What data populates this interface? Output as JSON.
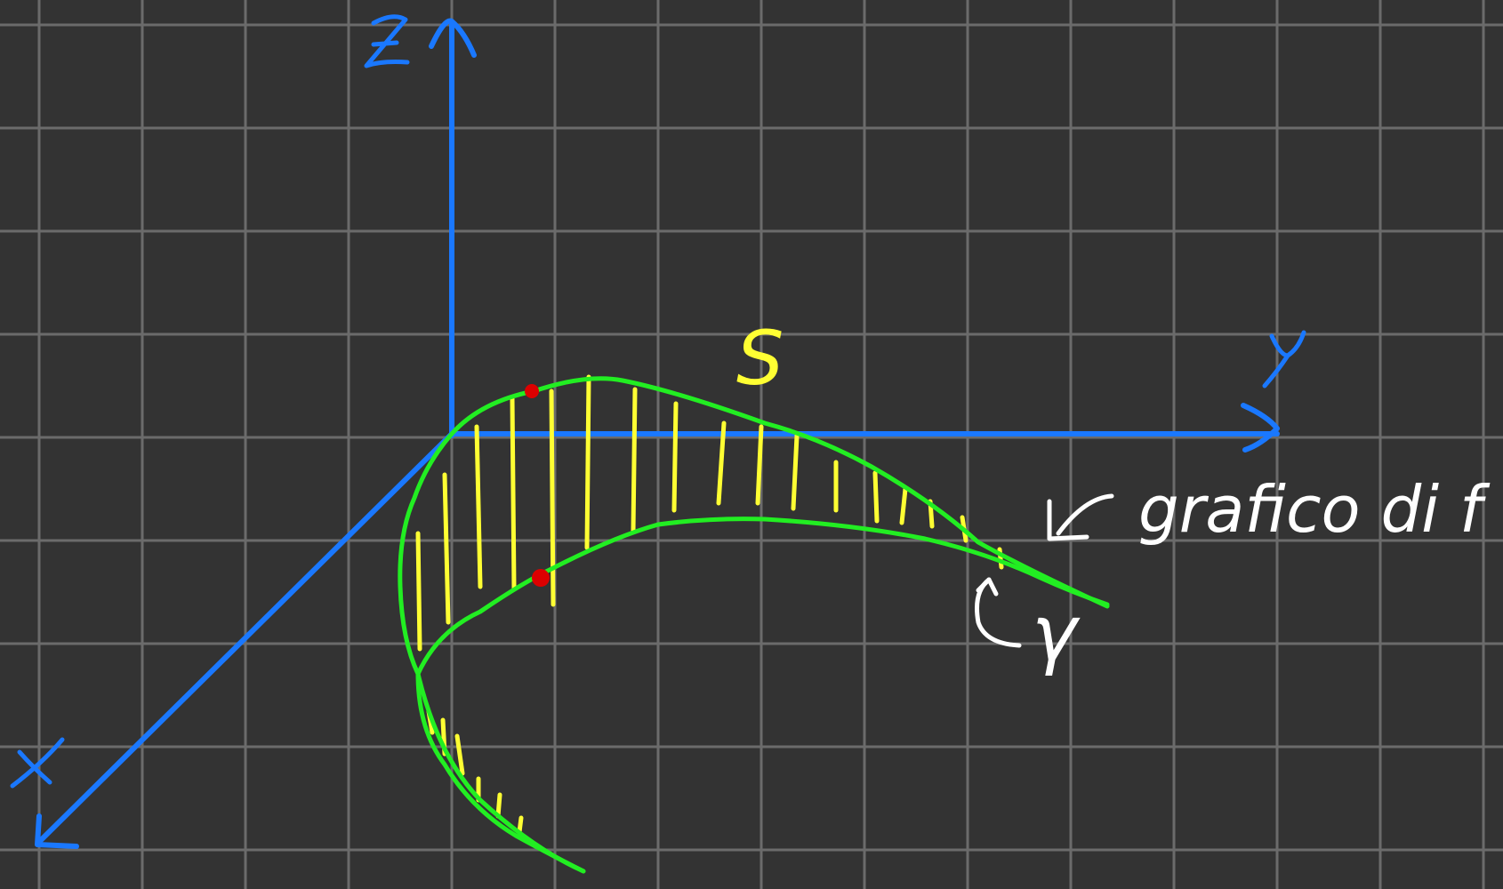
{
  "labels": {
    "z_axis": "z",
    "y_axis": "y",
    "x_axis": "x",
    "surface": "S",
    "graph_note": "grafico di f",
    "curve": "γ"
  },
  "colors": {
    "background": "#333333",
    "grid": "#6b6b6b",
    "axis": "#1a78ff",
    "surface_edge": "#22ee22",
    "hatching": "#ffff33",
    "points": "#dd0000",
    "annotation": "#ffffff"
  },
  "icons": {
    "arrow_to_graph": "arrow-down-left-icon",
    "arrow_to_curve": "curved-arrow-icon"
  }
}
